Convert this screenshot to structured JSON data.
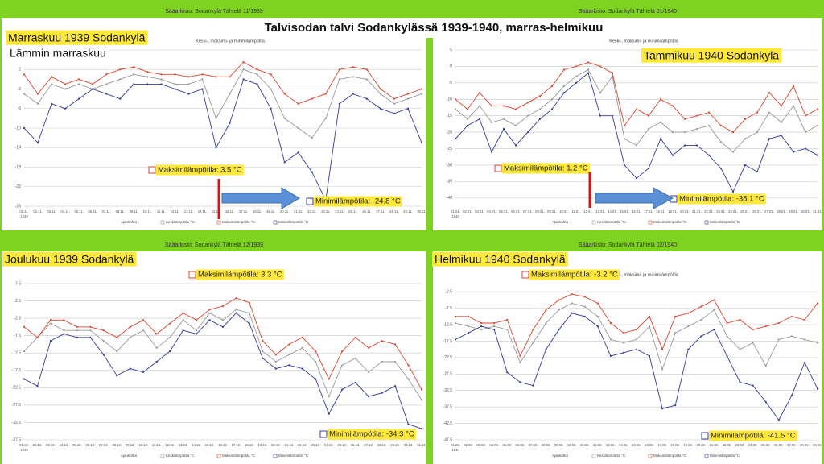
{
  "title": "Talvisodan talvi Sodankylässä 1939-1940, marras-helmikuu",
  "chart_data": [
    {
      "type": "line",
      "title": "Marraskuu 1939 Sodankylä",
      "header": "Sääarkisto: Sodankylä Tähtelä 11/1939",
      "subtitle": "Keski-, maksimi- ja minimilämpötila",
      "note": "Lämmin marraskuu",
      "year": "1939",
      "x_label": "Ajankohta",
      "annotations": [
        "Maksimilämpötila: 3.5 °C",
        "Minimilämpötila: -24.8 °C"
      ],
      "categories": [
        "01.11.",
        "02.11.",
        "03.11.",
        "04.11.",
        "05.11.",
        "06.11.",
        "07.11.",
        "08.11.",
        "09.11.",
        "10.11.",
        "11.11.",
        "12.11.",
        "13.11.",
        "14.11.",
        "15.11.",
        "16.11.",
        "17.11.",
        "18.11.",
        "19.11.",
        "20.11.",
        "21.11.",
        "22.11.",
        "23.11.",
        "24.11.",
        "25.11.",
        "26.11.",
        "27.11.",
        "28.11.",
        "29.11.",
        "30.11."
      ],
      "ylim": [
        -26,
        6
      ],
      "yticks": [
        6,
        2,
        -2,
        -6,
        -10,
        -14,
        -18,
        -22,
        -26
      ],
      "series": [
        {
          "name": "Keskilämpötila °C",
          "color": "#9a9a9a",
          "values": [
            -3,
            -5,
            -1,
            -2,
            -1,
            -2,
            -1,
            0,
            1,
            0.5,
            0,
            -1,
            -1,
            0,
            -8,
            -3,
            2,
            1,
            -2,
            -8,
            -10,
            -12,
            -8,
            0,
            0.5,
            0,
            -3,
            -5,
            -4,
            -3
          ]
        },
        {
          "name": "Maksimilämpötila °C",
          "color": "#d9462f",
          "values": [
            1,
            -3,
            0.5,
            -1,
            0,
            -1,
            1,
            2,
            2.5,
            1.5,
            1,
            1,
            0.5,
            1,
            0.5,
            0.5,
            3.5,
            2,
            1,
            -3,
            -5,
            -4,
            -3,
            2,
            2.5,
            2,
            -2,
            -4,
            -3,
            -2
          ]
        },
        {
          "name": "Minimilämpötila °C",
          "color": "#35399a",
          "values": [
            -10,
            -13,
            -5,
            -6,
            -4,
            -2,
            -3,
            -4,
            -1,
            -1,
            -1,
            -2,
            -3,
            -2,
            -14,
            -9,
            0,
            -1,
            -6,
            -17,
            -15,
            -19,
            -24.8,
            -5,
            -3,
            -4,
            -6,
            -7,
            -6,
            -13
          ]
        }
      ]
    },
    {
      "type": "line",
      "title": "Tammikuu 1940 Sodankylä",
      "header": "Sääarkisto: Sodankylä Tähtelä 01/1940",
      "subtitle": "Keski-, maksimi- ja minimilämpötila",
      "year": "1940",
      "x_label": "Ajankohta",
      "annotations": [
        "Maksimilämpötila: 1.2 °C",
        "Minimilämpötila: -38.1 °C"
      ],
      "categories": [
        "01.01.",
        "02.01.",
        "03.01.",
        "04.01.",
        "05.01.",
        "06.01.",
        "07.01.",
        "08.01.",
        "09.01.",
        "10.01.",
        "11.01.",
        "12.01.",
        "13.01.",
        "14.01.",
        "15.01.",
        "16.01.",
        "17.01.",
        "18.01.",
        "19.01.",
        "20.01.",
        "21.01.",
        "22.01.",
        "23.01.",
        "24.01.",
        "25.01.",
        "26.01.",
        "27.01.",
        "28.01.",
        "29.01.",
        "30.01.",
        "31.01."
      ],
      "ylim": [
        -42.5,
        5
      ],
      "yticks": [
        5,
        0,
        -5,
        -10,
        -15,
        -20,
        -25,
        -30,
        -35,
        -40
      ],
      "series": [
        {
          "name": "Keskilämpötila °C",
          "color": "#9a9a9a",
          "values": [
            -13,
            -16,
            -12,
            -17,
            -16,
            -18,
            -15,
            -13,
            -10,
            -6,
            -3,
            -1,
            -8,
            -3,
            -22,
            -24,
            -19,
            -17,
            -20,
            -20,
            -19,
            -18,
            -23,
            -26,
            -22,
            -20,
            -14,
            -17,
            -12,
            -20,
            -18
          ]
        },
        {
          "name": "Maksimilämpötila °C",
          "color": "#d9462f",
          "values": [
            -10,
            -13,
            -8,
            -12,
            -12,
            -13,
            -11,
            -9,
            -6,
            -1,
            0,
            1.2,
            0,
            -2,
            -18,
            -13,
            -15,
            -10,
            -12,
            -16,
            -15,
            -14,
            -18,
            -20,
            -16,
            -14,
            -8,
            -12,
            -6,
            -15,
            -13
          ]
        },
        {
          "name": "Minimilämpötila °C",
          "color": "#35399a",
          "values": [
            -22,
            -18,
            -16,
            -26,
            -19,
            -24,
            -20,
            -16,
            -13,
            -8,
            -5,
            -2,
            -15,
            -15,
            -30,
            -34,
            -31,
            -22,
            -27,
            -24,
            -24,
            -27,
            -31,
            -38.1,
            -30,
            -32,
            -22,
            -21,
            -26,
            -25,
            -27
          ]
        }
      ]
    },
    {
      "type": "line",
      "title": "Joulukuu 1939 Sodankylä",
      "header": "Sääarkisto: Sodankylä Tähtelä 12/1939",
      "subtitle": "Keski-, maksimi- ja minimilämpötila",
      "year": "1939",
      "x_label": "Ajankohta",
      "annotations": [
        "Maksimilämpötila: 3.3 °C",
        "Minimilämpötila: -34.3 °C"
      ],
      "categories": [
        "01.12.",
        "02.12.",
        "03.12.",
        "04.12.",
        "05.12.",
        "06.12.",
        "07.12.",
        "08.12.",
        "09.12.",
        "10.12.",
        "11.12.",
        "12.12.",
        "13.12.",
        "14.12.",
        "15.12.",
        "16.12.",
        "17.12.",
        "18.12.",
        "19.12.",
        "20.12.",
        "21.12.",
        "22.12.",
        "23.12.",
        "24.12.",
        "25.12.",
        "26.12.",
        "27.12.",
        "28.12.",
        "29.12.",
        "30.12.",
        "31.12."
      ],
      "ylim": [
        -37.5,
        7.5
      ],
      "yticks": [
        7.5,
        2.5,
        -2.5,
        -7.5,
        -12.5,
        -17.5,
        -22.5,
        -27.5,
        -32.5,
        -37.5
      ],
      "series": [
        {
          "name": "Keskilämpötila °C",
          "color": "#9a9a9a",
          "values": [
            -12,
            -8,
            -4,
            -6,
            -6,
            -6,
            -9,
            -12,
            -8,
            -6,
            -11,
            -8,
            -3,
            -6,
            -1,
            -3,
            0,
            -1,
            -12,
            -15,
            -13,
            -11,
            -15,
            -25,
            -16,
            -14,
            -18,
            -15,
            -15,
            -20,
            -26
          ]
        },
        {
          "name": "Maksimilämpötila °C",
          "color": "#d9462f",
          "values": [
            -5,
            -8,
            -3,
            -3,
            -5,
            -5,
            -6,
            -8,
            -5,
            -3,
            -7,
            -4,
            -1,
            -3,
            0,
            1,
            3.3,
            2,
            -9,
            -13,
            -10,
            -8,
            -12,
            -20,
            -12,
            -8,
            -11,
            -9,
            -10,
            -16,
            -23
          ]
        },
        {
          "name": "Minimilämpötila °C",
          "color": "#35399a",
          "values": [
            -20,
            -22,
            -9,
            -7,
            -8,
            -8,
            -13,
            -19,
            -17,
            -18,
            -15,
            -12,
            -6,
            -7,
            -3,
            -5,
            -1,
            -4,
            -14,
            -17,
            -16,
            -17,
            -20,
            -30,
            -23,
            -21,
            -25,
            -24,
            -22,
            -33,
            -34.3
          ]
        }
      ]
    },
    {
      "type": "line",
      "title": "Helmikuu 1940 Sodankylä",
      "header": "Sääarkisto: Sodankylä Tähtelä 02/1940",
      "subtitle": "Keski-, maksimi- ja minimilämpötila",
      "year": "1940",
      "x_label": "Ajankohta",
      "annotations": [
        "Maksimilämpötila: -3.2 °C",
        "Minimilämpötila: -41.5 °C"
      ],
      "categories": [
        "01.02.",
        "02.02.",
        "03.02.",
        "04.02.",
        "05.02.",
        "06.02.",
        "07.02.",
        "08.02.",
        "09.02.",
        "10.02.",
        "11.02.",
        "12.02.",
        "13.02.",
        "14.02.",
        "15.02.",
        "16.02.",
        "17.02.",
        "18.02.",
        "19.02.",
        "20.02.",
        "21.02.",
        "22.02.",
        "23.02.",
        "24.02.",
        "25.02.",
        "26.02.",
        "27.02.",
        "28.02.",
        "29.02."
      ],
      "ylim": [
        -47.5,
        0
      ],
      "yticks": [
        -2.5,
        -7.5,
        -12.5,
        -17.5,
        -22.5,
        -27.5,
        -32.5,
        -37.5,
        -42.5,
        -47.5
      ],
      "series": [
        {
          "name": "Keskilämpötila °C",
          "color": "#9a9a9a",
          "values": [
            -12,
            -13,
            -14,
            -13,
            -14,
            -24,
            -18,
            -12,
            -8,
            -6,
            -7,
            -10,
            -17,
            -18,
            -17,
            -13,
            -26,
            -15,
            -13,
            -11,
            -8,
            -16,
            -20,
            -18,
            -25,
            -17,
            -16,
            -17,
            -18
          ]
        },
        {
          "name": "Maksimilämpötila °C",
          "color": "#d9462f",
          "values": [
            -10,
            -10,
            -12,
            -12,
            -11,
            -22,
            -14,
            -8,
            -5,
            -3.2,
            -4,
            -6,
            -12,
            -15,
            -14,
            -10,
            -20,
            -10,
            -9,
            -7,
            -5,
            -12,
            -11,
            -14,
            -13,
            -12,
            -10,
            -11,
            -6
          ]
        },
        {
          "name": "Minimilämpötila °C",
          "color": "#35399a",
          "values": [
            -17,
            -15,
            -13,
            -14,
            -27,
            -30,
            -31,
            -20,
            -14,
            -9,
            -10,
            -13,
            -22,
            -21,
            -20,
            -22,
            -38,
            -37,
            -20,
            -16,
            -14,
            -22,
            -30,
            -31,
            -36,
            -41.5,
            -34,
            -24,
            -32
          ]
        }
      ]
    }
  ]
}
